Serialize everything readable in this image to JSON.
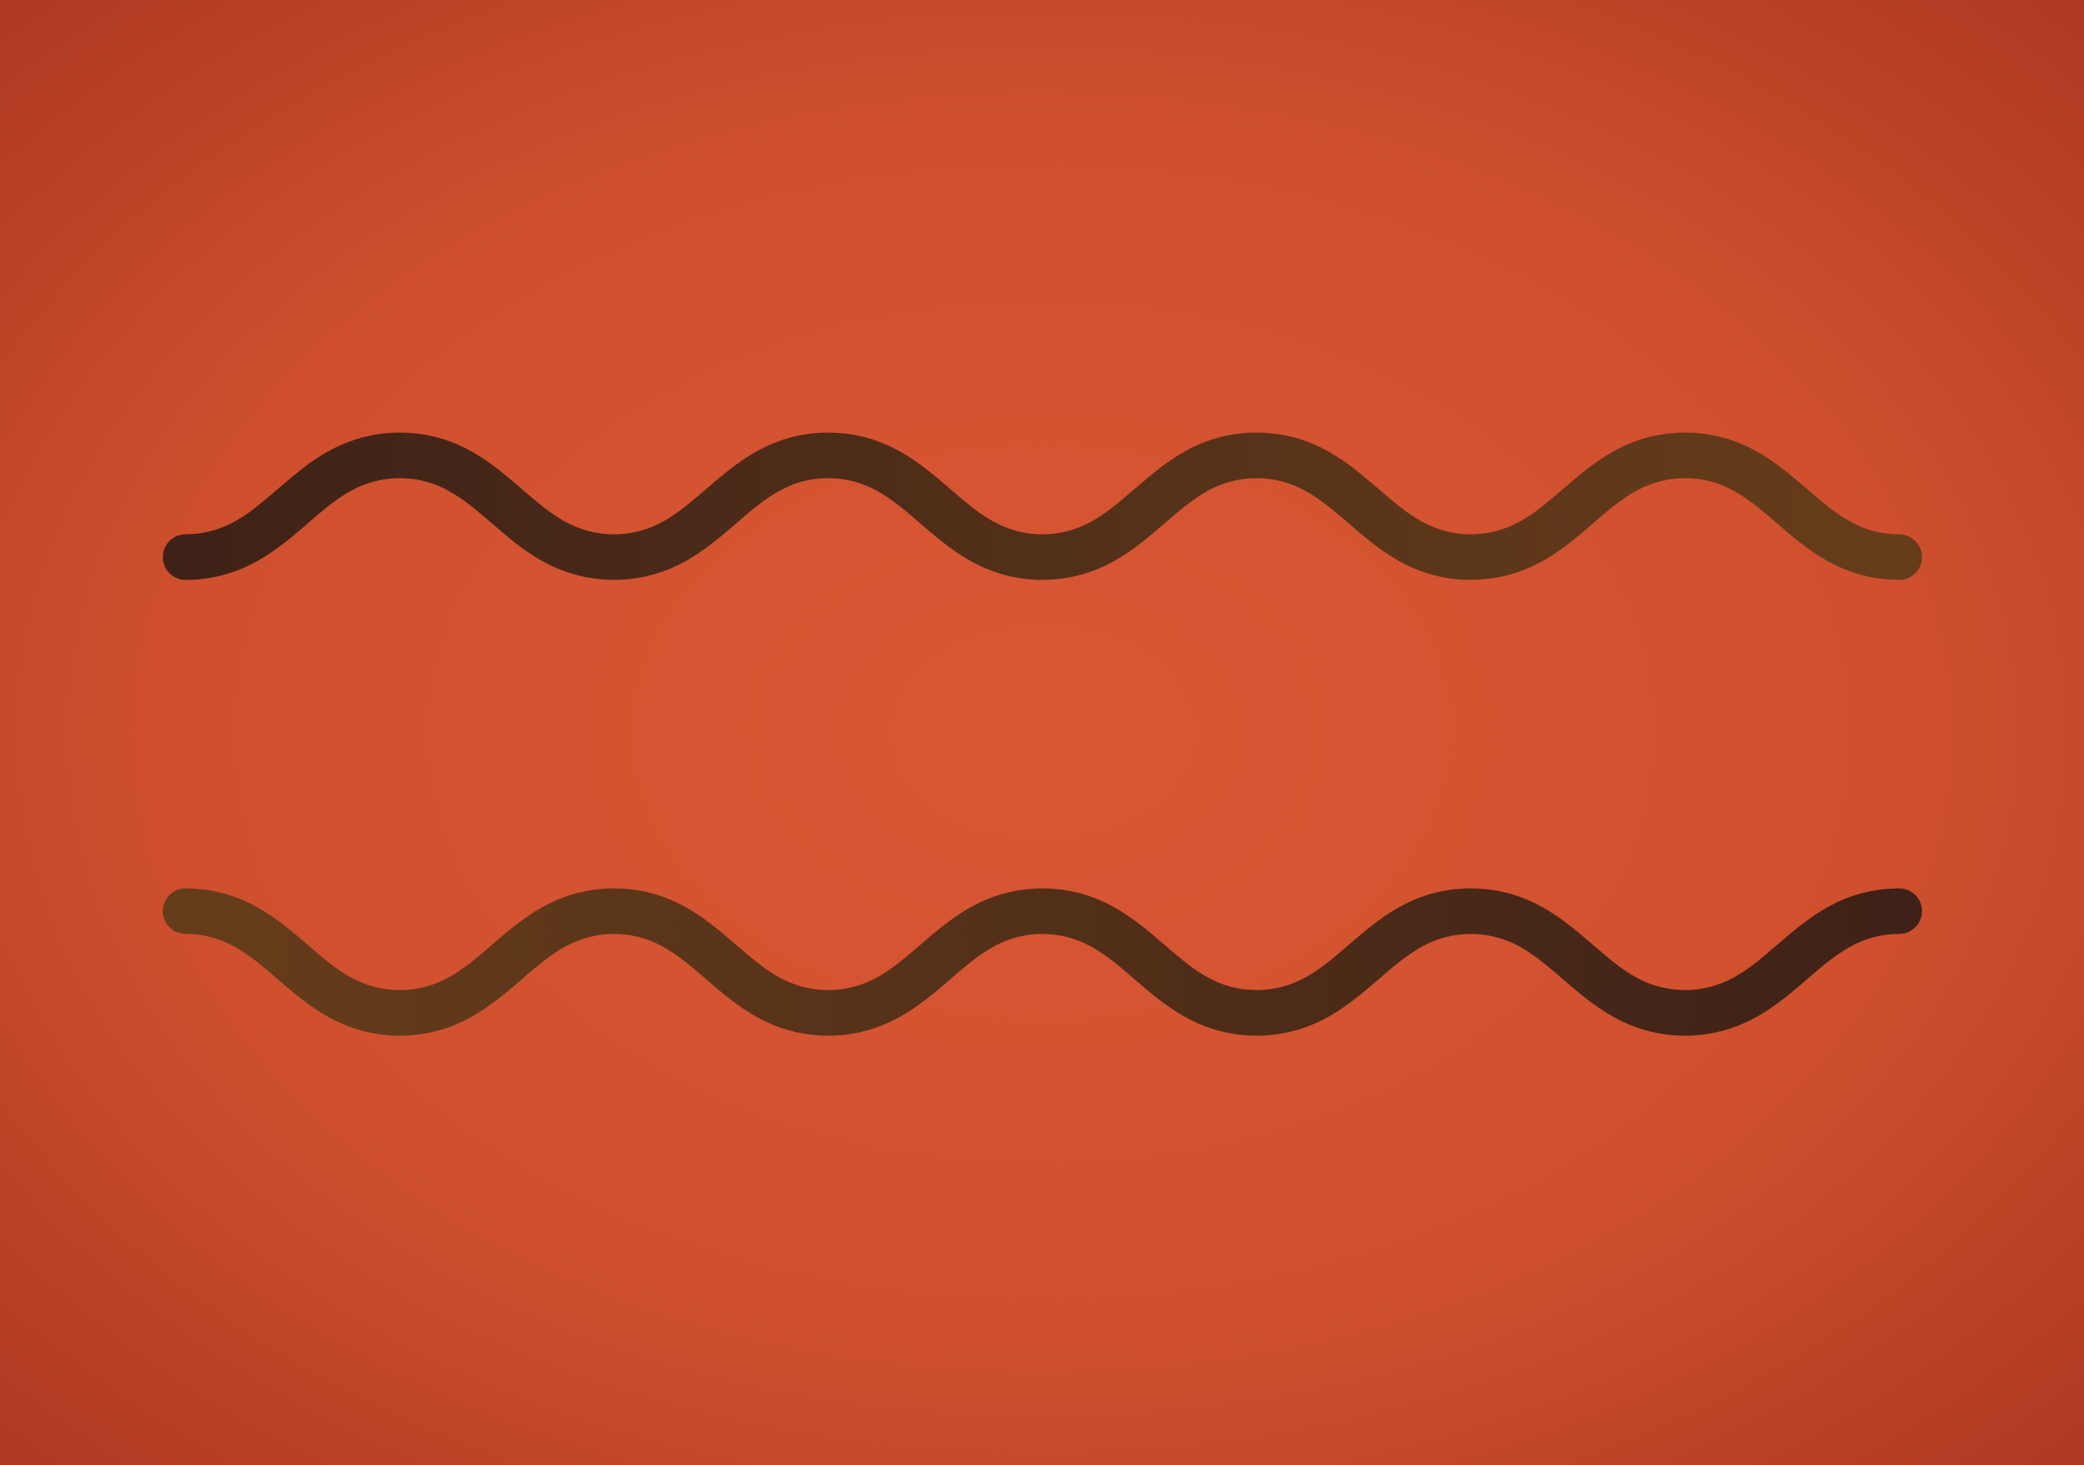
{
  "background": {
    "center_color": "#d95733",
    "mid_color": "#d0502e",
    "edge_color": "#a83520"
  },
  "waves": [
    {
      "name": "top-wave",
      "periods": 4,
      "phase": "starts-at-trough",
      "color_start": "#3e2217",
      "color_end": "#663d1a"
    },
    {
      "name": "bottom-wave",
      "periods": 4,
      "phase": "starts-at-crest",
      "color_start": "#663d1a",
      "color_end": "#3e2217"
    }
  ]
}
